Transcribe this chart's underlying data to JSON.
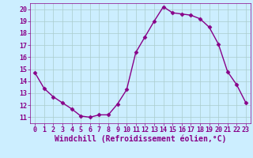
{
  "x": [
    0,
    1,
    2,
    3,
    4,
    5,
    6,
    7,
    8,
    9,
    10,
    11,
    12,
    13,
    14,
    15,
    16,
    17,
    18,
    19,
    20,
    21,
    22,
    23
  ],
  "y": [
    14.7,
    13.4,
    12.7,
    12.2,
    11.7,
    11.1,
    11.0,
    11.2,
    11.2,
    12.1,
    13.3,
    16.4,
    17.7,
    19.0,
    20.2,
    19.7,
    19.6,
    19.5,
    19.2,
    18.5,
    17.1,
    14.8,
    13.7,
    12.2
  ],
  "line_color": "#880088",
  "marker": "D",
  "marker_size": 2.5,
  "bg_color": "#cceeff",
  "grid_color": "#aacccc",
  "xlabel": "Windchill (Refroidissement éolien,°C)",
  "xlim": [
    -0.5,
    23.5
  ],
  "ylim": [
    10.5,
    20.5
  ],
  "yticks": [
    11,
    12,
    13,
    14,
    15,
    16,
    17,
    18,
    19,
    20
  ],
  "xticks": [
    0,
    1,
    2,
    3,
    4,
    5,
    6,
    7,
    8,
    9,
    10,
    11,
    12,
    13,
    14,
    15,
    16,
    17,
    18,
    19,
    20,
    21,
    22,
    23
  ],
  "tick_fontsize": 6,
  "xlabel_fontsize": 7,
  "line_width": 1.0
}
